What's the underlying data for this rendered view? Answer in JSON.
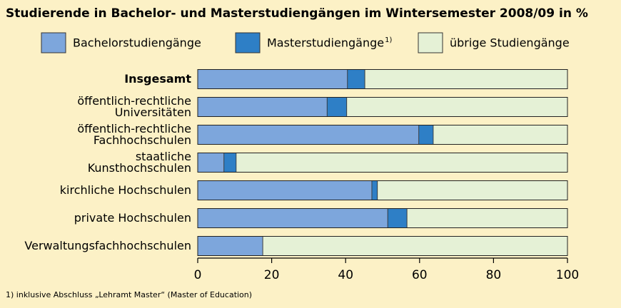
{
  "chart_data": {
    "type": "stacked-bar-horizontal",
    "title": "Studierende in Bachelor- und Masterstudiengängen im Wintersemester 2008/09 in %",
    "categories": [
      "Insgesamt",
      "öffentlich-rechtliche\nUniversitäten",
      "öffentlich-rechtliche\nFachhochschulen",
      "staatliche\nKunsthochschulen",
      "kirchliche Hochschulen",
      "private Hochschulen",
      "Verwaltungsfachhochschulen"
    ],
    "series": [
      {
        "name": "Bachelorstudiengänge",
        "color": "#7da6dc",
        "values": [
          40.5,
          35.0,
          59.8,
          7.1,
          47.1,
          51.4,
          17.6
        ]
      },
      {
        "name": "Masterstudiengänge",
        "note": "1)",
        "color": "#2e7fc6",
        "values": [
          4.7,
          5.3,
          3.9,
          3.3,
          1.5,
          5.2,
          0
        ]
      },
      {
        "name": "übrige Studiengänge",
        "color": "#e5f1d6",
        "values": [
          54.8,
          59.7,
          36.3,
          89.6,
          51.4,
          43.4,
          82.4
        ]
      }
    ],
    "xlim": [
      0,
      100
    ],
    "xticks": [
      0,
      20,
      40,
      60,
      80,
      100
    ],
    "grid": false,
    "footnote": "1) inklusive Abschluss „Lehramt Master“ (Master of Education)"
  }
}
